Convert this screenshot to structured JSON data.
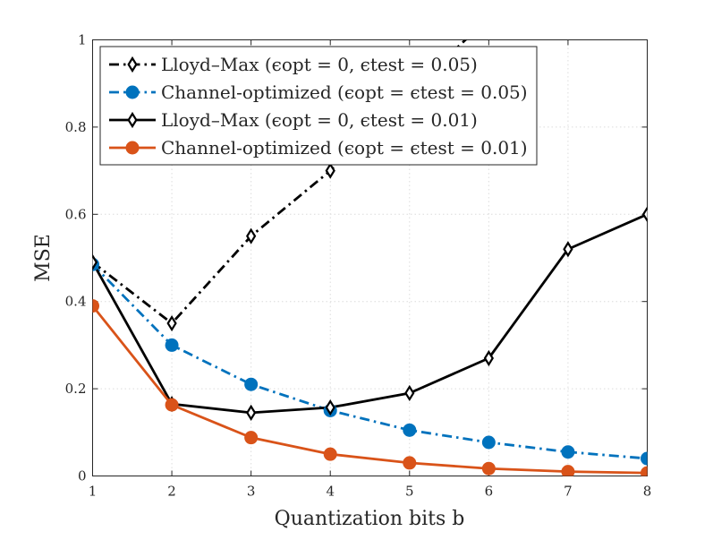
{
  "chart_data": {
    "type": "line",
    "title": "",
    "xlabel": "Quantization bits b",
    "ylabel": "MSE",
    "xlim": [
      1,
      8
    ],
    "ylim": [
      0,
      1
    ],
    "grid": true,
    "legend_position": "top-left",
    "x": [
      1,
      2,
      3,
      4,
      5,
      6,
      7,
      8
    ],
    "x_ticks": [
      "1",
      "2",
      "3",
      "4",
      "5",
      "6",
      "7",
      "8"
    ],
    "y_ticks": [
      "0",
      "0.2",
      "0.4",
      "0.6",
      "0.8",
      "1"
    ],
    "y_tick_values": [
      0,
      0.2,
      0.4,
      0.6,
      0.8,
      1
    ],
    "series": [
      {
        "name": "Lloyd–Max (ϵopt = 0, ϵtest = 0.05)",
        "color": "#000000",
        "line_style": "dash-dot",
        "marker": "diamond",
        "values": [
          0.49,
          0.35,
          0.55,
          0.7,
          0.88,
          1.05,
          null,
          null
        ]
      },
      {
        "name": "Channel-optimized (ϵopt = ϵtest = 0.05)",
        "color": "#0072BD",
        "line_style": "dash-dot",
        "marker": "circle",
        "values": [
          0.485,
          0.3,
          0.21,
          0.15,
          0.105,
          0.077,
          0.055,
          0.04
        ]
      },
      {
        "name": "Lloyd–Max (ϵopt = 0, ϵtest = 0.01)",
        "color": "#000000",
        "line_style": "solid",
        "marker": "diamond",
        "values": [
          0.49,
          0.165,
          0.145,
          0.157,
          0.19,
          0.27,
          0.52,
          0.6
        ]
      },
      {
        "name": "Channel-optimized (ϵopt = ϵtest = 0.01)",
        "color": "#D95319",
        "line_style": "solid",
        "marker": "circle",
        "values": [
          0.39,
          0.163,
          0.088,
          0.05,
          0.03,
          0.017,
          0.01,
          0.007
        ]
      }
    ]
  }
}
